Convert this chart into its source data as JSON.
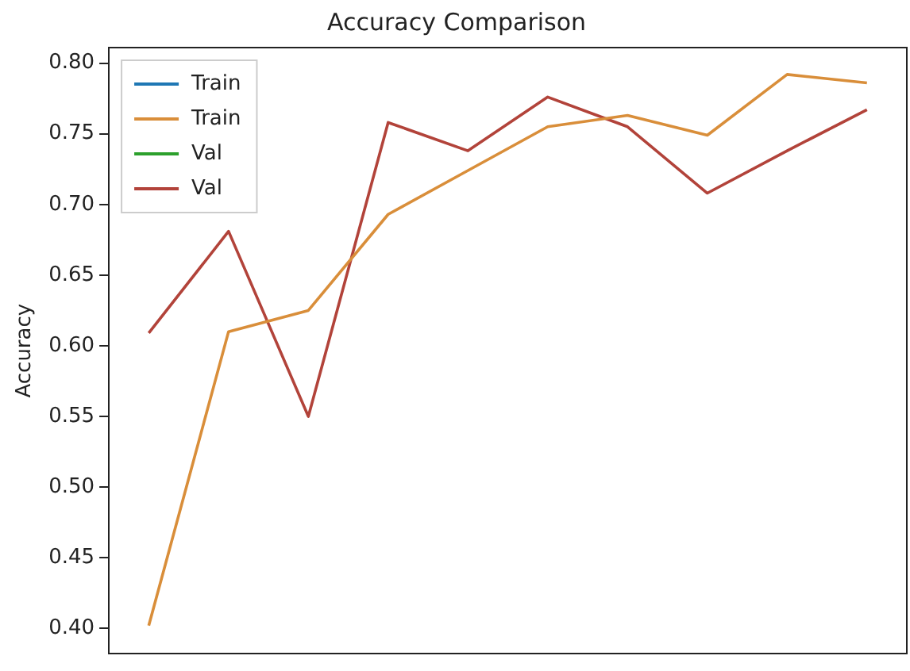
{
  "chart_data": {
    "type": "line",
    "title": "Accuracy Comparison",
    "ylabel": "Accuracy",
    "categories": [
      null,
      null,
      null,
      null,
      null,
      null,
      null,
      null,
      null,
      null
    ],
    "series": [
      {
        "name": "Train",
        "color": "#1f77b4",
        "values": [
          null,
          null,
          null,
          null,
          null,
          null,
          null,
          null,
          null,
          null
        ]
      },
      {
        "name": "Train",
        "color": "#d98e3a",
        "values": [
          0.402,
          0.61,
          0.625,
          0.693,
          0.724,
          0.755,
          0.763,
          0.749,
          0.792,
          0.786
        ]
      },
      {
        "name": "Val",
        "color": "#2ca02c",
        "values": [
          null,
          null,
          null,
          null,
          null,
          null,
          null,
          null,
          null,
          null
        ]
      },
      {
        "name": "Val",
        "color": "#b2433a",
        "values": [
          0.609,
          0.681,
          0.55,
          0.758,
          0.738,
          0.776,
          0.755,
          0.708,
          0.738,
          0.767
        ]
      }
    ],
    "ylim": [
      0.382,
      0.811
    ],
    "yticks": [
      {
        "value": 0.4,
        "label": "0.40"
      },
      {
        "value": 0.45,
        "label": "0.45"
      },
      {
        "value": 0.5,
        "label": "0.50"
      },
      {
        "value": 0.55,
        "label": "0.55"
      },
      {
        "value": 0.6,
        "label": "0.60"
      },
      {
        "value": 0.65,
        "label": "0.65"
      },
      {
        "value": 0.7,
        "label": "0.70"
      },
      {
        "value": 0.75,
        "label": "0.75"
      },
      {
        "value": 0.8,
        "label": "0.80"
      }
    ],
    "grid": false,
    "legend": "top left",
    "tick_labels": "y",
    "marker": "none",
    "line_style": "solid"
  }
}
